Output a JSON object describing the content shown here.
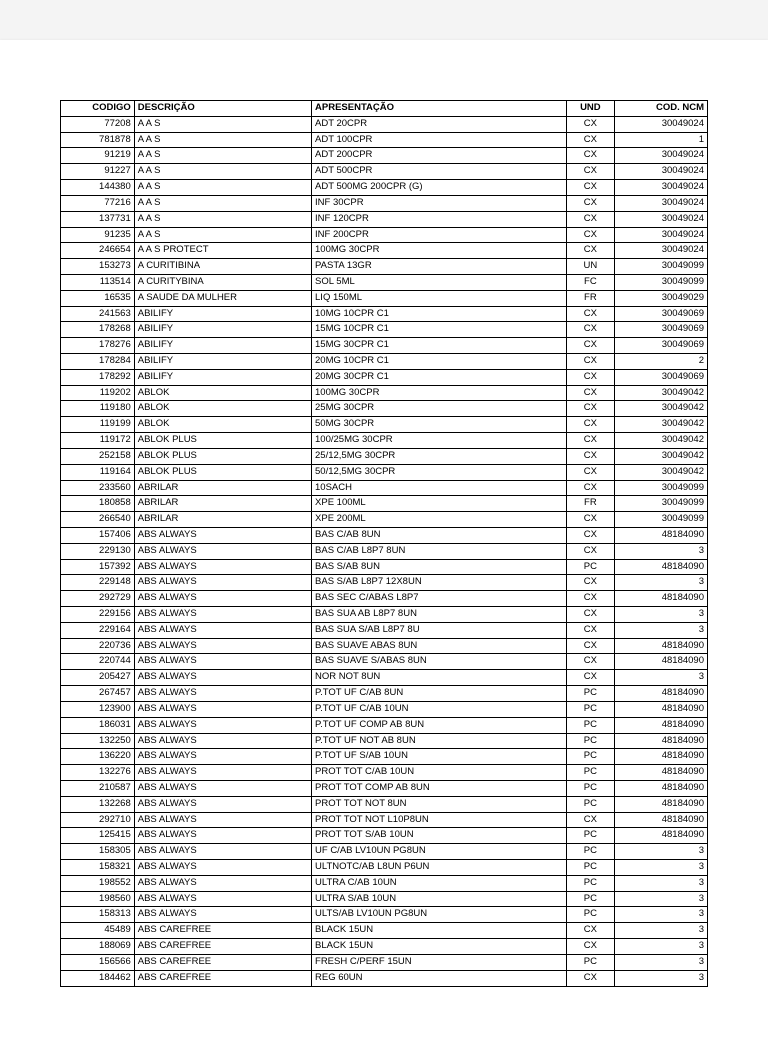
{
  "table": {
    "columns": [
      "CODIGO",
      "DESCRIÇÃO",
      "APRESENTAÇÃO",
      "UND",
      "COD. NCM"
    ],
    "col_classes": [
      "col-codigo",
      "col-desc",
      "col-apres",
      "col-und",
      "col-ncm"
    ],
    "rows": [
      [
        "77208",
        "A A S",
        "ADT    20CPR",
        "CX",
        "30049024"
      ],
      [
        "781878",
        "A A S",
        "ADT   100CPR",
        "CX",
        "1"
      ],
      [
        "91219",
        "A A S",
        "ADT   200CPR",
        "CX",
        "30049024"
      ],
      [
        "91227",
        "A A S",
        "ADT   500CPR",
        "CX",
        "30049024"
      ],
      [
        "144380",
        "A A S",
        "ADT 500MG 200CPR (G)",
        "CX",
        "30049024"
      ],
      [
        "77216",
        "A A S",
        "INF     30CPR",
        "CX",
        "30049024"
      ],
      [
        "137731",
        "A A S",
        "INF   120CPR",
        "CX",
        "30049024"
      ],
      [
        "91235",
        "A A S",
        "INF   200CPR",
        "CX",
        "30049024"
      ],
      [
        "246654",
        "A A S PROTECT",
        "100MG 30CPR",
        "CX",
        "30049024"
      ],
      [
        "153273",
        "A CURITIBINA",
        "PASTA  13GR",
        "UN",
        "30049099"
      ],
      [
        "113514",
        "A CURITYBINA",
        "SOL      5ML",
        "FC",
        "30049099"
      ],
      [
        "16535",
        "A SAUDE DA MULHER",
        "LIQ   150ML",
        "FR",
        "30049029"
      ],
      [
        "241563",
        "ABILIFY",
        "10MG 10CPR        C1",
        "CX",
        "30049069"
      ],
      [
        "178268",
        "ABILIFY",
        "15MG  10CPR       C1",
        "CX",
        "30049069"
      ],
      [
        "178276",
        "ABILIFY",
        "15MG  30CPR       C1",
        "CX",
        "30049069"
      ],
      [
        "178284",
        "ABILIFY",
        "20MG  10CPR       C1",
        "CX",
        "2"
      ],
      [
        "178292",
        "ABILIFY",
        "20MG  30CPR       C1",
        "CX",
        "30049069"
      ],
      [
        "119202",
        "ABLOK",
        "100MG 30CPR",
        "CX",
        "30049042"
      ],
      [
        "119180",
        "ABLOK",
        "25MG  30CPR",
        "CX",
        "30049042"
      ],
      [
        "119199",
        "ABLOK",
        "50MG  30CPR",
        "CX",
        "30049042"
      ],
      [
        "119172",
        "ABLOK PLUS",
        "100/25MG  30CPR",
        "CX",
        "30049042"
      ],
      [
        "252158",
        "ABLOK PLUS",
        "25/12,5MG 30CPR",
        "CX",
        "30049042"
      ],
      [
        "119164",
        "ABLOK PLUS",
        "50/12,5MG 30CPR",
        "CX",
        "30049042"
      ],
      [
        "233560",
        "ABRILAR",
        "10SACH",
        "CX",
        "30049099"
      ],
      [
        "180858",
        "ABRILAR",
        "XPE 100ML",
        "FR",
        "30049099"
      ],
      [
        "266540",
        "ABRILAR",
        "XPE 200ML",
        "CX",
        "30049099"
      ],
      [
        "157406",
        "ABS ALWAYS",
        "BAS C/AB         8UN",
        "CX",
        "48184090"
      ],
      [
        "229130",
        "ABS ALWAYS",
        "BAS C/AB L8P7    8UN",
        "CX",
        "3"
      ],
      [
        "157392",
        "ABS ALWAYS",
        "BAS S/AB         8UN",
        "PC",
        "48184090"
      ],
      [
        "229148",
        "ABS ALWAYS",
        "BAS S/AB L8P7 12X8UN",
        "CX",
        "3"
      ],
      [
        "292729",
        "ABS ALWAYS",
        "BAS SEC C/ABAS  L8P7",
        "CX",
        "48184090"
      ],
      [
        "229156",
        "ABS ALWAYS",
        "BAS SUA AB L8P7  8UN",
        "CX",
        "3"
      ],
      [
        "229164",
        "ABS ALWAYS",
        "BAS SUA S/AB L8P7 8U",
        "CX",
        "3"
      ],
      [
        "220736",
        "ABS ALWAYS",
        "BAS SUAVE ABAS   8UN",
        "CX",
        "48184090"
      ],
      [
        "220744",
        "ABS ALWAYS",
        "BAS SUAVE S/ABAS 8UN",
        "CX",
        "48184090"
      ],
      [
        "205427",
        "ABS ALWAYS",
        "NOR NOT          8UN",
        "CX",
        "3"
      ],
      [
        "267457",
        "ABS ALWAYS",
        "P.TOT UF C/AB    8UN",
        "PC",
        "48184090"
      ],
      [
        "123900",
        "ABS ALWAYS",
        "P.TOT UF C/AB   10UN",
        "PC",
        "48184090"
      ],
      [
        "186031",
        "ABS ALWAYS",
        "P.TOT UF COMP AB 8UN",
        "PC",
        "48184090"
      ],
      [
        "132250",
        "ABS ALWAYS",
        "P.TOT UF NOT AB  8UN",
        "PC",
        "48184090"
      ],
      [
        "136220",
        "ABS ALWAYS",
        "P.TOT UF S/AB   10UN",
        "PC",
        "48184090"
      ],
      [
        "132276",
        "ABS ALWAYS",
        "PROT TOT C/AB   10UN",
        "PC",
        "48184090"
      ],
      [
        "210587",
        "ABS ALWAYS",
        "PROT TOT COMP AB 8UN",
        "PC",
        "48184090"
      ],
      [
        "132268",
        "ABS ALWAYS",
        "PROT TOT NOT     8UN",
        "PC",
        "48184090"
      ],
      [
        "292710",
        "ABS ALWAYS",
        "PROT TOT NOT L10P8UN",
        "CX",
        "48184090"
      ],
      [
        "125415",
        "ABS ALWAYS",
        "PROT TOT S/AB   10UN",
        "PC",
        "48184090"
      ],
      [
        "158305",
        "ABS ALWAYS",
        "UF C/AB LV10UN PG8UN",
        "PC",
        "3"
      ],
      [
        "158321",
        "ABS ALWAYS",
        "ULTNOTC/AB L8UN P6UN",
        "PC",
        "3"
      ],
      [
        "198552",
        "ABS ALWAYS",
        "ULTRA C/AB      10UN",
        "PC",
        "3"
      ],
      [
        "198560",
        "ABS ALWAYS",
        "ULTRA S/AB      10UN",
        "PC",
        "3"
      ],
      [
        "158313",
        "ABS ALWAYS",
        "ULTS/AB LV10UN PG8UN",
        "PC",
        "3"
      ],
      [
        "45489",
        "ABS CAREFREE",
        "BLACK         15UN",
        "CX",
        "3"
      ],
      [
        "188069",
        "ABS CAREFREE",
        "BLACK         15UN",
        "CX",
        "3"
      ],
      [
        "156566",
        "ABS CAREFREE",
        "FRESH C/PERF    15UN",
        "PC",
        "3"
      ],
      [
        "184462",
        "ABS CAREFREE",
        "REG          60UN",
        "CX",
        "3"
      ]
    ]
  }
}
